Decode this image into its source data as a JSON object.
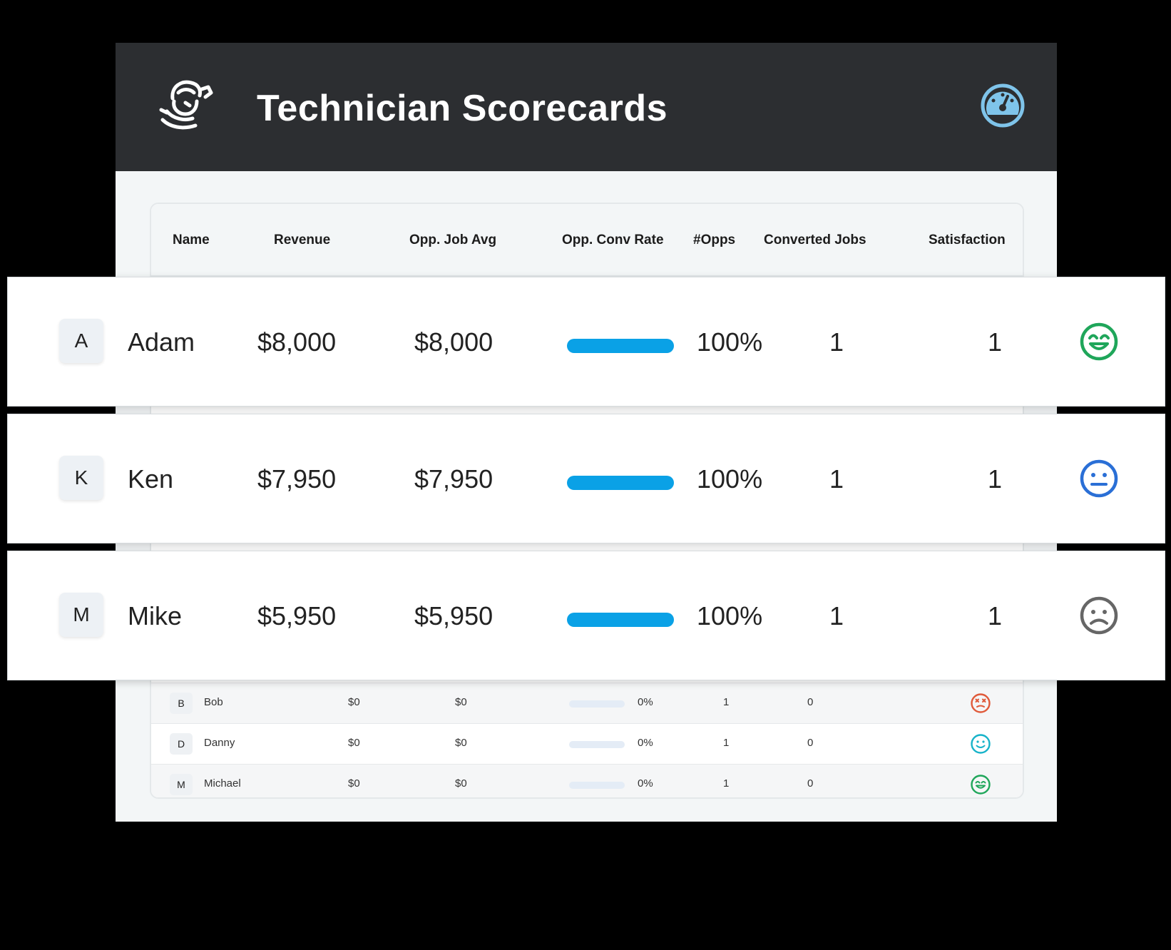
{
  "header": {
    "title": "Technician Scorecards",
    "logo_icon": "mascot-logo-icon",
    "gauge_icon": "speedometer-icon",
    "gauge_color": "#7fc4ea"
  },
  "table": {
    "columns": [
      "Name",
      "Revenue",
      "Opp. Job Avg",
      "Opp. Conv Rate",
      "#Opps",
      "Converted Jobs",
      "Satisfaction"
    ],
    "rows": [
      {
        "initial": "B",
        "name": "Bob",
        "revenue": "$0",
        "opp_job_avg": "$0",
        "conv_rate": "0%",
        "conv_rate_fraction": 0,
        "opps": "1",
        "converted": "0",
        "satisfaction_icon": "dizzy-face-icon",
        "satisfaction_color": "#e05a3a"
      },
      {
        "initial": "D",
        "name": "Danny",
        "revenue": "$0",
        "opp_job_avg": "$0",
        "conv_rate": "0%",
        "conv_rate_fraction": 0,
        "opps": "1",
        "converted": "0",
        "satisfaction_icon": "smile-face-icon",
        "satisfaction_color": "#17b3c9"
      },
      {
        "initial": "M",
        "name": "Michael",
        "revenue": "$0",
        "opp_job_avg": "$0",
        "conv_rate": "0%",
        "conv_rate_fraction": 0,
        "opps": "1",
        "converted": "0",
        "satisfaction_icon": "grin-face-icon",
        "satisfaction_color": "#1fa65a"
      }
    ]
  },
  "highlight_cards": [
    {
      "initial": "A",
      "name": "Adam",
      "revenue": "$8,000",
      "opp_job_avg": "$8,000",
      "conv_rate": "100%",
      "conv_rate_fraction": 1,
      "opps": "1",
      "converted": "1",
      "satisfaction_icon": "grin-face-icon",
      "satisfaction_color": "#1fa65a"
    },
    {
      "initial": "K",
      "name": "Ken",
      "revenue": "$7,950",
      "opp_job_avg": "$7,950",
      "conv_rate": "100%",
      "conv_rate_fraction": 1,
      "opps": "1",
      "converted": "1",
      "satisfaction_icon": "neutral-face-icon",
      "satisfaction_color": "#2a6fd6"
    },
    {
      "initial": "M",
      "name": "Mike",
      "revenue": "$5,950",
      "opp_job_avg": "$5,950",
      "conv_rate": "100%",
      "conv_rate_fraction": 1,
      "opps": "1",
      "converted": "1",
      "satisfaction_icon": "sad-face-icon",
      "satisfaction_color": "#666666"
    }
  ],
  "colors": {
    "bar_fill": "#0aa1e6",
    "bar_empty": "#e4ecf6",
    "header_bg": "#2c2e31"
  }
}
